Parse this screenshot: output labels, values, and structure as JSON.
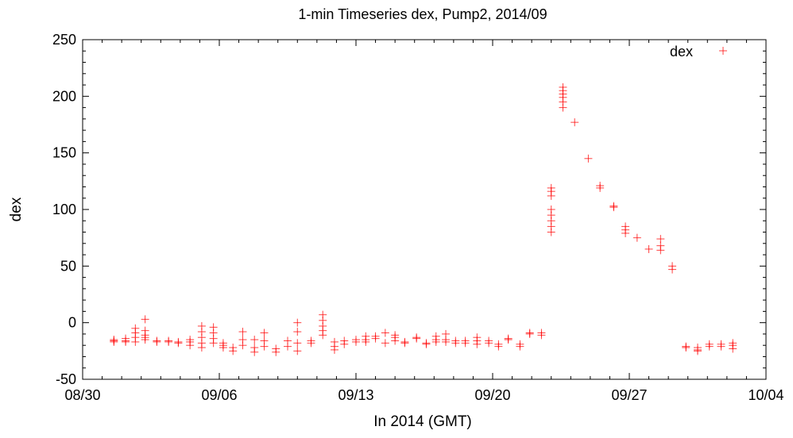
{
  "chart_data": {
    "type": "scatter",
    "title": "1-min Timeseries dex, Pump2, 2014/09",
    "xlabel": "In 2014 (GMT)",
    "ylabel": "dex",
    "x_ticks": [
      "08/30",
      "09/06",
      "09/13",
      "09/20",
      "09/27",
      "10/04"
    ],
    "x_tick_days": [
      0,
      7,
      14,
      21,
      28,
      35
    ],
    "xlim_days": [
      0,
      35
    ],
    "y_ticks": [
      "-50",
      "0",
      "50",
      "100",
      "150",
      "200",
      "250"
    ],
    "ylim": [
      -50,
      250
    ],
    "grid": false,
    "legend": {
      "position": "top-right",
      "entries": [
        "dex"
      ]
    },
    "series": [
      {
        "name": "dex",
        "marker": "plus",
        "color": "#ff0000",
        "points": [
          [
            1.6,
            -17
          ],
          [
            1.6,
            -15
          ],
          [
            1.6,
            -16
          ],
          [
            2.2,
            -16
          ],
          [
            2.2,
            -14
          ],
          [
            2.2,
            -17
          ],
          [
            2.7,
            -17
          ],
          [
            2.7,
            -13
          ],
          [
            2.7,
            -9
          ],
          [
            2.7,
            -5
          ],
          [
            3.2,
            -15
          ],
          [
            3.2,
            -11
          ],
          [
            3.2,
            -7
          ],
          [
            3.2,
            3
          ],
          [
            3.2,
            -13
          ],
          [
            3.8,
            -16
          ],
          [
            3.8,
            -17
          ],
          [
            4.4,
            -17
          ],
          [
            4.4,
            -16
          ],
          [
            4.9,
            -18
          ],
          [
            4.9,
            -17
          ],
          [
            5.5,
            -17
          ],
          [
            5.5,
            -20
          ],
          [
            5.5,
            -15
          ],
          [
            6.1,
            -22
          ],
          [
            6.1,
            -18
          ],
          [
            6.1,
            -13
          ],
          [
            6.1,
            -3
          ],
          [
            6.1,
            -8
          ],
          [
            6.7,
            -18
          ],
          [
            6.7,
            -14
          ],
          [
            6.7,
            -9
          ],
          [
            6.7,
            -4
          ],
          [
            7.2,
            -20
          ],
          [
            7.2,
            -22
          ],
          [
            7.2,
            -18
          ],
          [
            7.7,
            -25
          ],
          [
            7.7,
            -22
          ],
          [
            8.2,
            -20
          ],
          [
            8.2,
            -15
          ],
          [
            8.2,
            -8
          ],
          [
            8.8,
            -26
          ],
          [
            8.8,
            -22
          ],
          [
            8.8,
            -15
          ],
          [
            9.3,
            -21
          ],
          [
            9.3,
            -16
          ],
          [
            9.3,
            -9
          ],
          [
            9.9,
            -26
          ],
          [
            9.9,
            -23
          ],
          [
            10.5,
            -21
          ],
          [
            10.5,
            -16
          ],
          [
            11.0,
            -25
          ],
          [
            11.0,
            -18
          ],
          [
            11.0,
            -8
          ],
          [
            11.0,
            0
          ],
          [
            11.7,
            -18
          ],
          [
            11.7,
            -16
          ],
          [
            12.3,
            -7
          ],
          [
            12.3,
            -3
          ],
          [
            12.3,
            2
          ],
          [
            12.3,
            7
          ],
          [
            12.3,
            -11
          ],
          [
            12.9,
            -17
          ],
          [
            12.9,
            -21
          ],
          [
            12.9,
            -24
          ],
          [
            13.4,
            -19
          ],
          [
            13.4,
            -16
          ],
          [
            14.0,
            -15
          ],
          [
            14.0,
            -17
          ],
          [
            14.5,
            -15
          ],
          [
            14.5,
            -17
          ],
          [
            14.5,
            -12
          ],
          [
            15.0,
            -14
          ],
          [
            15.0,
            -12
          ],
          [
            15.5,
            -18
          ],
          [
            15.5,
            -9
          ],
          [
            16.0,
            -16
          ],
          [
            16.0,
            -13
          ],
          [
            16.0,
            -11
          ],
          [
            16.5,
            -18
          ],
          [
            16.5,
            -17
          ],
          [
            17.1,
            -14
          ],
          [
            17.1,
            -13
          ],
          [
            17.6,
            -18
          ],
          [
            17.6,
            -19
          ],
          [
            18.1,
            -17
          ],
          [
            18.1,
            -15
          ],
          [
            18.1,
            -12
          ],
          [
            18.6,
            -17
          ],
          [
            18.6,
            -15
          ],
          [
            18.6,
            -10
          ],
          [
            19.1,
            -18
          ],
          [
            19.1,
            -16
          ],
          [
            19.6,
            -18
          ],
          [
            19.6,
            -16
          ],
          [
            20.2,
            -19
          ],
          [
            20.2,
            -16
          ],
          [
            20.2,
            -13
          ],
          [
            20.8,
            -18
          ],
          [
            20.8,
            -16
          ],
          [
            21.3,
            -21
          ],
          [
            21.3,
            -19
          ],
          [
            21.8,
            -15
          ],
          [
            21.8,
            -14
          ],
          [
            22.4,
            -21
          ],
          [
            22.4,
            -19
          ],
          [
            22.9,
            -9
          ],
          [
            22.9,
            -10
          ],
          [
            23.5,
            -11
          ],
          [
            23.5,
            -9
          ],
          [
            24.0,
            80
          ],
          [
            24.0,
            85
          ],
          [
            24.0,
            90
          ],
          [
            24.0,
            95
          ],
          [
            24.0,
            100
          ],
          [
            24.0,
            112
          ],
          [
            24.0,
            116
          ],
          [
            24.0,
            119
          ],
          [
            24.6,
            190
          ],
          [
            24.6,
            195
          ],
          [
            24.6,
            199
          ],
          [
            24.6,
            202
          ],
          [
            24.6,
            205
          ],
          [
            24.6,
            208
          ],
          [
            25.2,
            177
          ],
          [
            25.9,
            145
          ],
          [
            26.5,
            121
          ],
          [
            26.5,
            119
          ],
          [
            27.2,
            103
          ],
          [
            27.2,
            102
          ],
          [
            27.8,
            85
          ],
          [
            27.8,
            82
          ],
          [
            27.8,
            79
          ],
          [
            28.4,
            75
          ],
          [
            29.0,
            65
          ],
          [
            29.6,
            64
          ],
          [
            29.6,
            68
          ],
          [
            29.6,
            74
          ],
          [
            30.2,
            50
          ],
          [
            30.2,
            47
          ],
          [
            30.9,
            -22
          ],
          [
            30.9,
            -21
          ],
          [
            31.5,
            -24
          ],
          [
            31.5,
            -22
          ],
          [
            31.5,
            -25
          ],
          [
            32.1,
            -21
          ],
          [
            32.1,
            -19
          ],
          [
            32.7,
            -21
          ],
          [
            32.7,
            -19
          ],
          [
            33.3,
            -23
          ],
          [
            33.3,
            -20
          ],
          [
            33.3,
            -18
          ]
        ]
      }
    ]
  }
}
